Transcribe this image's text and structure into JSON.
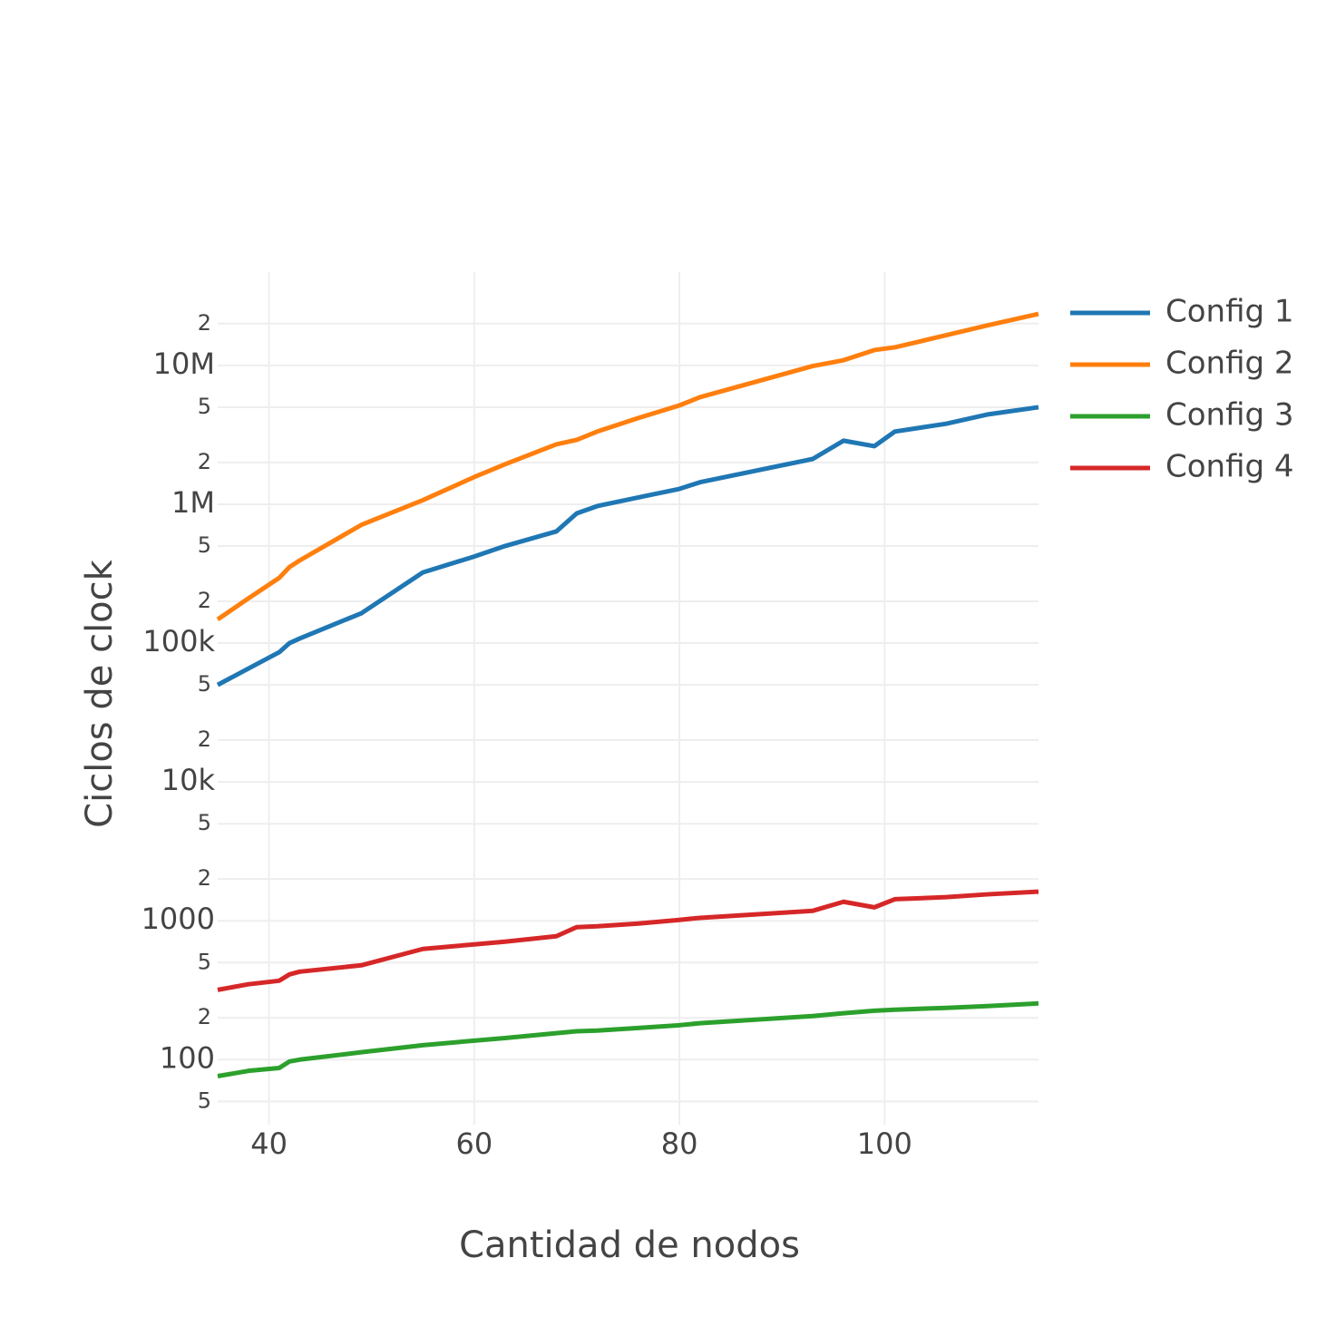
{
  "chart_data": {
    "type": "line",
    "x_label": "Cantidad de nodos",
    "y_label": "Ciclos de clock",
    "x": [
      35,
      38,
      41,
      42,
      43,
      49,
      55,
      60,
      63,
      68,
      70,
      72,
      76,
      80,
      82,
      93,
      96,
      99,
      101,
      106,
      110,
      115
    ],
    "series": [
      {
        "name": "Config 1",
        "color": "#1f77b4",
        "values": [
          50000,
          65600,
          86000,
          100000,
          108000,
          164000,
          323000,
          420000,
          500000,
          637000,
          860000,
          970000,
          1120000,
          1290000,
          1440000,
          2120000,
          2870000,
          2620000,
          3340000,
          3800000,
          4430000,
          5000000
        ]
      },
      {
        "name": "Config 2",
        "color": "#ff7f0e",
        "values": [
          148000,
          210000,
          295000,
          353000,
          394000,
          710000,
          1070000,
          1570000,
          1940000,
          2700000,
          2910000,
          3340000,
          4180000,
          5150000,
          5900000,
          9900000,
          10900000,
          12900000,
          13500000,
          16500000,
          19400000,
          23500000
        ]
      },
      {
        "name": "Config 3",
        "color": "#2ca02c",
        "values": [
          76,
          83,
          87,
          97,
          100,
          113,
          127,
          137,
          143,
          155,
          160,
          162,
          169,
          177,
          183,
          206,
          216,
          225,
          229,
          236,
          243,
          254
        ]
      },
      {
        "name": "Config 4",
        "color": "#d62728",
        "values": [
          318,
          349,
          370,
          411,
          430,
          478,
          627,
          676,
          707,
          774,
          900,
          913,
          955,
          1015,
          1050,
          1180,
          1370,
          1250,
          1430,
          1480,
          1550,
          1620
        ]
      }
    ],
    "xlim": [
      35,
      115
    ],
    "xticks": [
      40,
      60,
      80,
      100
    ],
    "ylim": [
      34,
      47000000
    ],
    "y_log": true,
    "grid": true,
    "legend": "right",
    "yticks": [
      {
        "value": 50,
        "label": "5"
      },
      100,
      {
        "value": 200,
        "label": "2"
      },
      {
        "value": 500,
        "label": "5"
      },
      1000,
      {
        "value": 2000,
        "label": "2"
      },
      {
        "value": 5000,
        "label": "5"
      },
      {
        "value": 10000,
        "label": "10k"
      },
      {
        "value": 20000,
        "label": "2"
      },
      {
        "value": 50000,
        "label": "5"
      },
      {
        "value": 100000,
        "label": "100k"
      },
      {
        "value": 200000,
        "label": "2"
      },
      {
        "value": 500000,
        "label": "5"
      },
      {
        "value": 1000000,
        "label": "1M"
      },
      {
        "value": 2000000,
        "label": "2"
      },
      {
        "value": 5000000,
        "label": "5"
      },
      {
        "value": 10000000,
        "label": "10M"
      },
      {
        "value": 20000000,
        "label": "2"
      }
    ]
  }
}
